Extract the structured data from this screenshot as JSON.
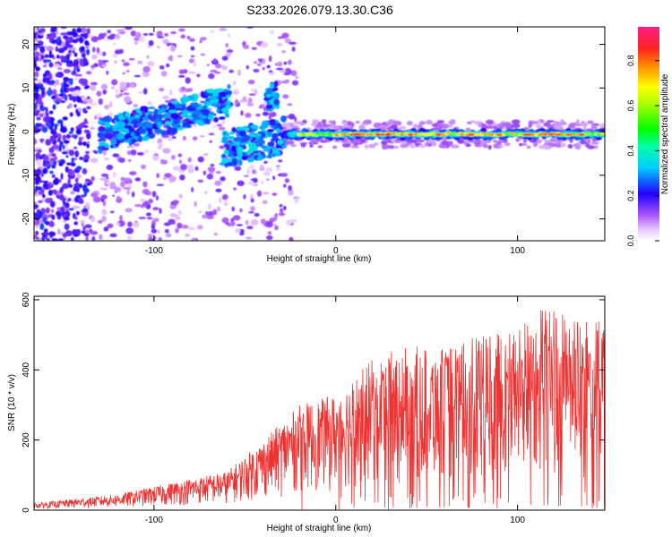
{
  "title": "S233.2026.079.13.30.C36",
  "chart_data": [
    {
      "type": "heatmap",
      "xlabel": "Height of straight line (km)",
      "ylabel": "Frequency (Hz)",
      "xlim": [
        -166,
        148
      ],
      "ylim": [
        -25,
        24
      ],
      "xticks": [
        -100,
        0,
        100
      ],
      "yticks": [
        -20,
        -10,
        0,
        10,
        20
      ],
      "xtick_labels": [
        "-100",
        "0",
        "100"
      ],
      "ytick_labels": [
        "-20",
        "-10",
        "0",
        "10",
        "20"
      ],
      "colorbar": {
        "label": "Normalized spectral amplitude",
        "range": [
          0,
          0.95
        ],
        "ticks": [
          0,
          0.2,
          0.4,
          0.6,
          0.8
        ],
        "tick_labels": [
          "0.0",
          "0.2",
          "0.4",
          "0.6",
          "0.8"
        ]
      },
      "features": [
        {
          "x_range": [
            -166,
            -25
          ],
          "freq_range": [
            -25,
            24
          ],
          "amplitude": 0.15,
          "note": "scattered noise"
        },
        {
          "x_range": [
            -130,
            -60
          ],
          "freq_center": 3,
          "amplitude": 0.35
        },
        {
          "x_range": [
            -60,
            -30
          ],
          "freq_center": -3,
          "amplitude": 0.35
        },
        {
          "x_range": [
            -25,
            148
          ],
          "freq_center": -0.6,
          "amplitude": 0.85,
          "note": "strong narrow line near 0 Hz"
        }
      ]
    },
    {
      "type": "line",
      "xlabel": "Height of straight line (km)",
      "ylabel": "SNR (10 * v/v)",
      "xlim": [
        -166,
        148
      ],
      "ylim": [
        0,
        610
      ],
      "xticks": [
        -100,
        0,
        100
      ],
      "yticks": [
        0,
        200,
        400,
        600
      ],
      "xtick_labels": [
        "-100",
        "0",
        "100"
      ],
      "ytick_labels": [
        "0",
        "200",
        "400",
        "600"
      ],
      "color": "#ee3333",
      "envelope": {
        "x": [
          -166,
          -120,
          -80,
          -60,
          -40,
          -20,
          0,
          20,
          40,
          60,
          80,
          100,
          115,
          130,
          148
        ],
        "y": [
          20,
          45,
          90,
          110,
          200,
          300,
          330,
          430,
          470,
          460,
          500,
          520,
          600,
          540,
          540
        ]
      }
    }
  ]
}
